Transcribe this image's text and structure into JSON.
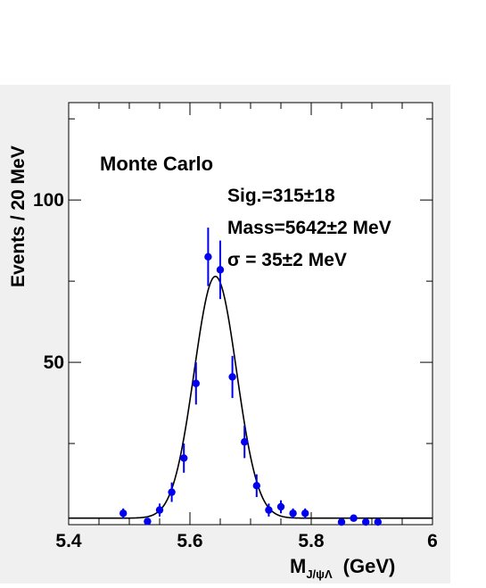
{
  "chart_data": {
    "type": "scatter",
    "title": "",
    "xlabel_main": "M",
    "xlabel_sub": "J/ψΛ",
    "xlabel_unit": "(GeV)",
    "ylabel": "Events / 20  MeV",
    "xlim": [
      5.4,
      6.0
    ],
    "ylim": [
      0,
      130
    ],
    "grid": false,
    "x_ticks": [
      {
        "value": 5.4,
        "label": "5.4"
      },
      {
        "value": 5.6,
        "label": "5.6"
      },
      {
        "value": 5.8,
        "label": "5.8"
      },
      {
        "value": 6.0,
        "label": "6"
      }
    ],
    "y_ticks": [
      {
        "value": 50,
        "label": "50"
      },
      {
        "value": 100,
        "label": "100"
      }
    ],
    "annotations": {
      "source": "Monte Carlo",
      "signal": "Sig.=315±18",
      "mass": "Mass=5642±2 MeV",
      "width": "σ = 35±2 MeV"
    },
    "series": [
      {
        "kind": "points",
        "color": "#0000ee",
        "points": [
          {
            "x": 5.49,
            "y": 3.5,
            "err": 1.5
          },
          {
            "x": 5.53,
            "y": 1.0,
            "err": 1.0
          },
          {
            "x": 5.55,
            "y": 4.5,
            "err": 2.0
          },
          {
            "x": 5.57,
            "y": 10.0,
            "err": 3.0
          },
          {
            "x": 5.59,
            "y": 20.5,
            "err": 4.5
          },
          {
            "x": 5.61,
            "y": 43.5,
            "err": 6.5
          },
          {
            "x": 5.63,
            "y": 82.5,
            "err": 9.0
          },
          {
            "x": 5.65,
            "y": 78.5,
            "err": 9.0
          },
          {
            "x": 5.67,
            "y": 45.5,
            "err": 6.5
          },
          {
            "x": 5.69,
            "y": 25.5,
            "err": 5.0
          },
          {
            "x": 5.71,
            "y": 12.0,
            "err": 3.5
          },
          {
            "x": 5.73,
            "y": 4.5,
            "err": 2.0
          },
          {
            "x": 5.75,
            "y": 5.5,
            "err": 2.0
          },
          {
            "x": 5.77,
            "y": 3.5,
            "err": 1.5
          },
          {
            "x": 5.79,
            "y": 3.5,
            "err": 1.5
          },
          {
            "x": 5.85,
            "y": 0.8,
            "err": 0.8
          },
          {
            "x": 5.87,
            "y": 2.0,
            "err": 1.0
          },
          {
            "x": 5.89,
            "y": 0.8,
            "err": 0.8
          },
          {
            "x": 5.91,
            "y": 0.8,
            "err": 0.8
          }
        ]
      },
      {
        "kind": "fit",
        "color": "#000000",
        "model": "gaussian+constant",
        "mean": 5.642,
        "sigma": 0.035,
        "amplitude": 74.5,
        "baseline": 2.0
      }
    ]
  }
}
